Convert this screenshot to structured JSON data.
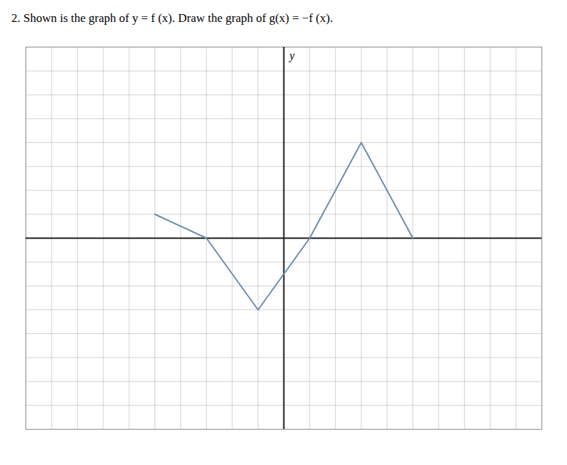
{
  "chart_data": {
    "type": "line",
    "title": "2.   Shown is the graph of  y = f (x). Draw the graph of  g(x) = −f (x).",
    "ylabel": "y",
    "x": [
      -5,
      -3,
      -1,
      1,
      3,
      5
    ],
    "values": [
      1,
      0,
      -3,
      0,
      4,
      0
    ],
    "color": "#6b8cad",
    "xlim": [
      -10,
      10
    ],
    "ylim": [
      -8,
      8
    ],
    "xticks": [
      -10,
      -9,
      -8,
      -7,
      -6,
      -5,
      -4,
      -3,
      -2,
      -1,
      0,
      1,
      2,
      3,
      4,
      5,
      6,
      7,
      8,
      9,
      10
    ],
    "yticks": [
      -8,
      -7,
      -6,
      -5,
      -4,
      -3,
      -2,
      -1,
      0,
      1,
      2,
      3,
      4,
      5,
      6,
      7,
      8
    ],
    "grid": true,
    "tick_labels": false
  }
}
